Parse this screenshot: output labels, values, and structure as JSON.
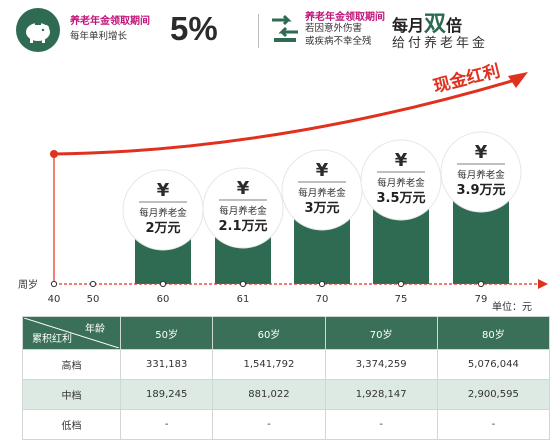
{
  "header": {
    "left": {
      "title": "养老年金领取期间",
      "subtitle": "每年单利增长",
      "rate": "5%"
    },
    "right": {
      "title": "养老年金领取期间",
      "line1": "若因意外伤害",
      "line2": "或疾病不幸全残",
      "monthly_prefix": "每月",
      "monthly_emph": "双",
      "monthly_suffix": "倍",
      "give": "给付养老年金"
    }
  },
  "chart_data": {
    "type": "bar",
    "categories": [
      "60",
      "61",
      "70",
      "75",
      "79"
    ],
    "values": [
      2,
      2.1,
      3,
      3.5,
      3.9
    ],
    "unit_label": "每月养老金",
    "value_labels": [
      "2万元",
      "2.1万元",
      "3万元",
      "3.5万元",
      "3.9万元"
    ],
    "currency_symbol": "¥",
    "x_axis_title": "周岁",
    "x_ticks": [
      "40",
      "50",
      "60",
      "61",
      "70",
      "75",
      "79"
    ],
    "annotation": "现金红利",
    "unit_note": "单位：元",
    "colors": {
      "bar": "#2f6a52",
      "arrow": "#e0301e",
      "axis": "#e0301e"
    }
  },
  "table": {
    "corner_top": "年龄",
    "corner_bottom": "累积红利",
    "columns": [
      "50岁",
      "60岁",
      "70岁",
      "80岁"
    ],
    "rows": [
      {
        "label": "高档",
        "values": [
          "331,183",
          "1,541,792",
          "3,374,259",
          "5,076,044"
        ]
      },
      {
        "label": "中档",
        "values": [
          "189,245",
          "881,022",
          "1,928,147",
          "2,900,595"
        ]
      },
      {
        "label": "低档",
        "values": [
          "-",
          "-",
          "-",
          "-"
        ]
      }
    ]
  }
}
